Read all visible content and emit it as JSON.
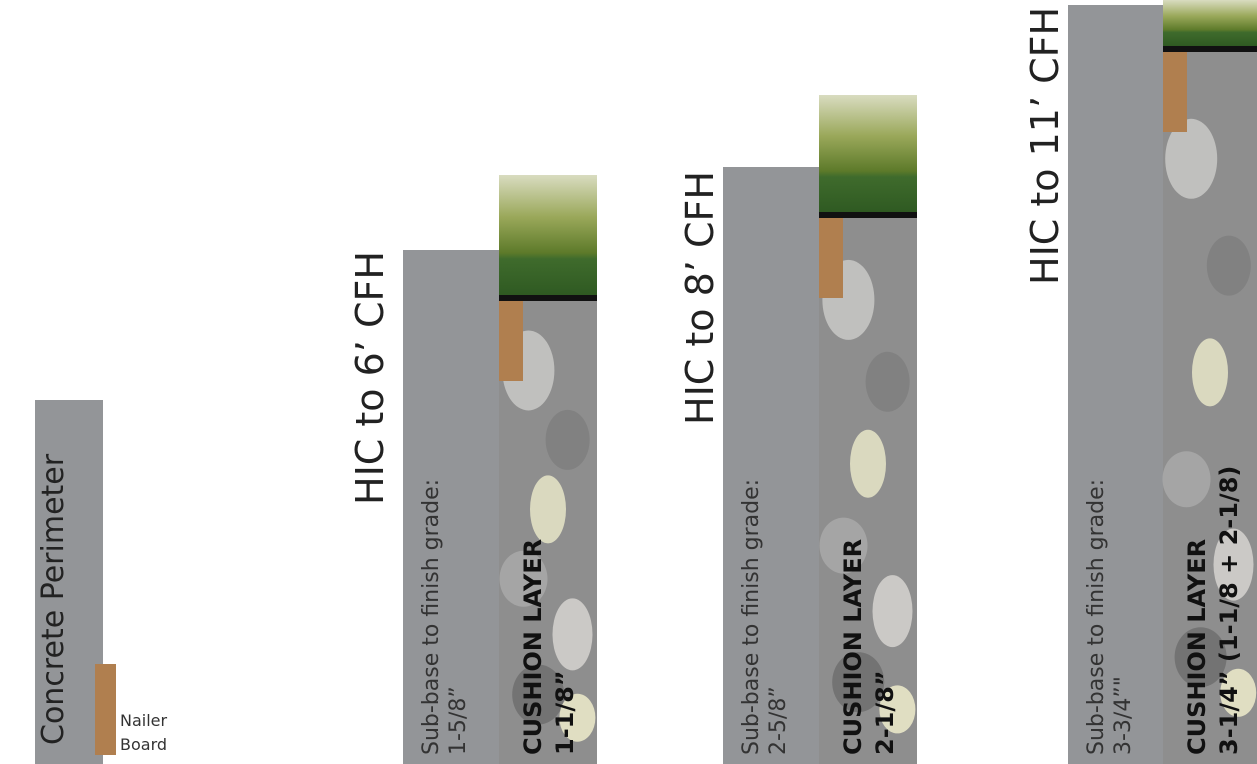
{
  "legend": {
    "concrete": "Concrete Perimeter",
    "nailer": [
      "Nailer",
      "Board"
    ]
  },
  "panels": [
    {
      "title": "HIC to 6’ CFH",
      "subbase": [
        "Sub-base to finish grade:",
        "1-5/8”"
      ],
      "cushion": [
        "CUSHION LAYER",
        "1-1/8”"
      ]
    },
    {
      "title": "HIC to 8’ CFH",
      "subbase": [
        "Sub-base to finish grade:",
        "2-5/8”"
      ],
      "cushion": [
        "CUSHION LAYER",
        "2-1/8”"
      ]
    },
    {
      "title": "HIC to 11’ CFH",
      "subbase": [
        "Sub-base to finish grade:",
        "3-3/4”\""
      ],
      "cushion": [
        "CUSHION LAYER",
        "3-1/4” (1-1/8 + 2-1/8)"
      ]
    }
  ]
}
